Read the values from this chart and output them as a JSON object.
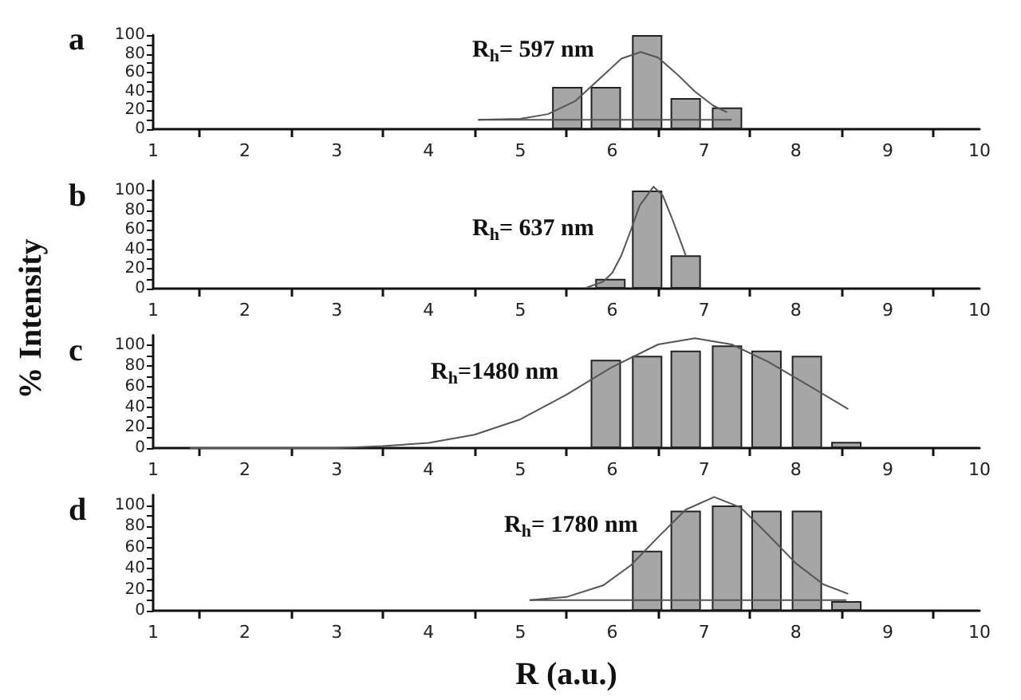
{
  "chart_data": [
    {
      "type": "bar",
      "title": "a",
      "annotations": [
        "R$_{h}$= 597 nm"
      ],
      "xlim": [
        1,
        10
      ],
      "xticks": [
        1,
        {
          "value": 1.5,
          "label": null
        },
        2,
        {
          "value": 2.5,
          "label": null
        },
        3,
        {
          "value": 3.5,
          "label": null
        },
        4,
        {
          "value": 4.5,
          "label": null
        },
        5,
        {
          "value": 5.5,
          "label": null
        },
        6,
        {
          "value": 6.5,
          "label": null
        },
        7,
        {
          "value": 7.5,
          "label": null
        },
        8,
        {
          "value": 8.5,
          "label": null
        },
        9,
        {
          "value": 9.5,
          "label": null
        },
        10
      ],
      "ylim": [
        0,
        100
      ],
      "yticks": [
        0,
        {
          "value": 10,
          "label": null
        },
        20,
        {
          "value": 30,
          "label": null
        },
        40,
        {
          "value": 50,
          "label": null
        },
        60,
        {
          "value": 70,
          "label": null
        },
        80,
        {
          "value": 90,
          "label": null
        },
        100
      ],
      "grid": false,
      "series": [
        {
          "color": "#a6a6a6",
          "x": [
            5.51,
            5.93,
            6.38,
            6.8,
            7.25
          ],
          "values": [
            45,
            45,
            100,
            33,
            23
          ]
        },
        {
          "type": "line",
          "color": "#555555",
          "x": [
            4.54,
            5.0,
            5.3,
            5.6,
            5.9,
            6.1,
            6.31,
            6.5,
            6.7,
            6.9,
            7.1,
            7.25
          ],
          "values": [
            10,
            11,
            16,
            30,
            57,
            75,
            82,
            76,
            59,
            40,
            25,
            18
          ]
        },
        {
          "type": "line",
          "color": "#555555",
          "x": [
            4.54,
            7.3
          ],
          "values": [
            10,
            10
          ]
        }
      ]
    },
    {
      "type": "bar",
      "title": "b",
      "ylabel": "% Intensity",
      "annotations": [
        "R$_{h}$= 637 nm"
      ],
      "xlim": [
        1,
        10
      ],
      "xticks": [
        1,
        {
          "value": 1.5,
          "label": null
        },
        2,
        {
          "value": 2.5,
          "label": null
        },
        3,
        {
          "value": 3.5,
          "label": null
        },
        4,
        {
          "value": 4.5,
          "label": null
        },
        5,
        {
          "value": 5.5,
          "label": null
        },
        6,
        {
          "value": 6.5,
          "label": null
        },
        7,
        {
          "value": 7.5,
          "label": null
        },
        8,
        {
          "value": 8.5,
          "label": null
        },
        9,
        {
          "value": 9.5,
          "label": null
        },
        10
      ],
      "ylim": [
        0,
        110
      ],
      "yticks": [
        0,
        {
          "value": 10,
          "label": null
        },
        20,
        {
          "value": 30,
          "label": null
        },
        40,
        {
          "value": 50,
          "label": null
        },
        60,
        {
          "value": 70,
          "label": null
        },
        80,
        {
          "value": 90,
          "label": null
        },
        100
      ],
      "grid": false,
      "series": [
        {
          "color": "#a6a6a6",
          "x": [
            5.98,
            6.38,
            6.8
          ],
          "values": [
            10,
            100,
            34
          ]
        },
        {
          "type": "line",
          "color": "#555555",
          "x": [
            5.72,
            5.9,
            6.0,
            6.1,
            6.2,
            6.3,
            6.45,
            6.55,
            6.65,
            6.8
          ],
          "values": [
            1,
            7,
            16,
            34,
            59,
            85,
            104,
            95,
            72,
            34
          ]
        }
      ]
    },
    {
      "type": "bar",
      "title": "c",
      "annotations": [
        "R$_{h}$=1480 nm"
      ],
      "xlim": [
        1,
        10
      ],
      "xticks": [
        1,
        {
          "value": 1.5,
          "label": null
        },
        2,
        {
          "value": 2.5,
          "label": null
        },
        3,
        {
          "value": 3.5,
          "label": null
        },
        4,
        {
          "value": 4.5,
          "label": null
        },
        5,
        {
          "value": 5.5,
          "label": null
        },
        6,
        {
          "value": 6.5,
          "label": null
        },
        7,
        {
          "value": 7.5,
          "label": null
        },
        8,
        {
          "value": 8.5,
          "label": null
        },
        9,
        {
          "value": 9.5,
          "label": null
        },
        10
      ],
      "ylim": [
        0,
        110
      ],
      "yticks": [
        0,
        {
          "value": 10,
          "label": null
        },
        20,
        {
          "value": 30,
          "label": null
        },
        40,
        {
          "value": 50,
          "label": null
        },
        60,
        {
          "value": 70,
          "label": null
        },
        80,
        {
          "value": 90,
          "label": null
        },
        100
      ],
      "grid": false,
      "series": [
        {
          "color": "#a6a6a6",
          "x": [
            5.93,
            6.38,
            6.8,
            7.25,
            7.68,
            8.12,
            8.55
          ],
          "values": [
            86,
            90,
            95,
            100,
            95,
            90,
            6
          ]
        },
        {
          "type": "line",
          "color": "#555555",
          "x": [
            1.4,
            3.0,
            3.5,
            4.0,
            4.5,
            5.0,
            5.5,
            6.0,
            6.5,
            6.9,
            7.3,
            7.7,
            8.1,
            8.57
          ],
          "values": [
            0,
            0,
            2,
            5,
            13,
            28,
            52,
            79,
            101,
            107,
            101,
            84,
            63,
            38
          ]
        }
      ]
    },
    {
      "type": "bar",
      "title": "d",
      "xlabel": "R (a.u.)",
      "annotations": [
        "R$_{h}$= 1780 nm"
      ],
      "xlim": [
        1,
        10
      ],
      "xticks": [
        1,
        {
          "value": 1.5,
          "label": null
        },
        2,
        {
          "value": 2.5,
          "label": null
        },
        3,
        {
          "value": 3.5,
          "label": null
        },
        4,
        {
          "value": 4.5,
          "label": null
        },
        5,
        {
          "value": 5.5,
          "label": null
        },
        6,
        {
          "value": 6.5,
          "label": null
        },
        7,
        {
          "value": 7.5,
          "label": null
        },
        8,
        {
          "value": 8.5,
          "label": null
        },
        9,
        {
          "value": 9.5,
          "label": null
        },
        10
      ],
      "ylim": [
        0,
        110
      ],
      "yticks": [
        0,
        {
          "value": 10,
          "label": null
        },
        20,
        {
          "value": 30,
          "label": null
        },
        40,
        {
          "value": 50,
          "label": null
        },
        60,
        {
          "value": 70,
          "label": null
        },
        80,
        {
          "value": 90,
          "label": null
        },
        100
      ],
      "grid": false,
      "series": [
        {
          "color": "#a6a6a6",
          "x": [
            6.38,
            6.8,
            7.25,
            7.68,
            8.12,
            8.55
          ],
          "values": [
            57,
            95,
            100,
            95,
            95,
            9
          ]
        },
        {
          "type": "line",
          "color": "#555555",
          "x": [
            5.1,
            5.5,
            5.9,
            6.2,
            6.5,
            6.8,
            7.11,
            7.4,
            7.7,
            8.0,
            8.3,
            8.57
          ],
          "values": [
            10,
            13,
            24,
            43,
            70,
            96,
            108,
            98,
            72,
            45,
            25,
            16
          ]
        },
        {
          "type": "line",
          "color": "#555555",
          "x": [
            5.1,
            8.55
          ],
          "values": [
            10,
            10
          ]
        }
      ]
    }
  ]
}
